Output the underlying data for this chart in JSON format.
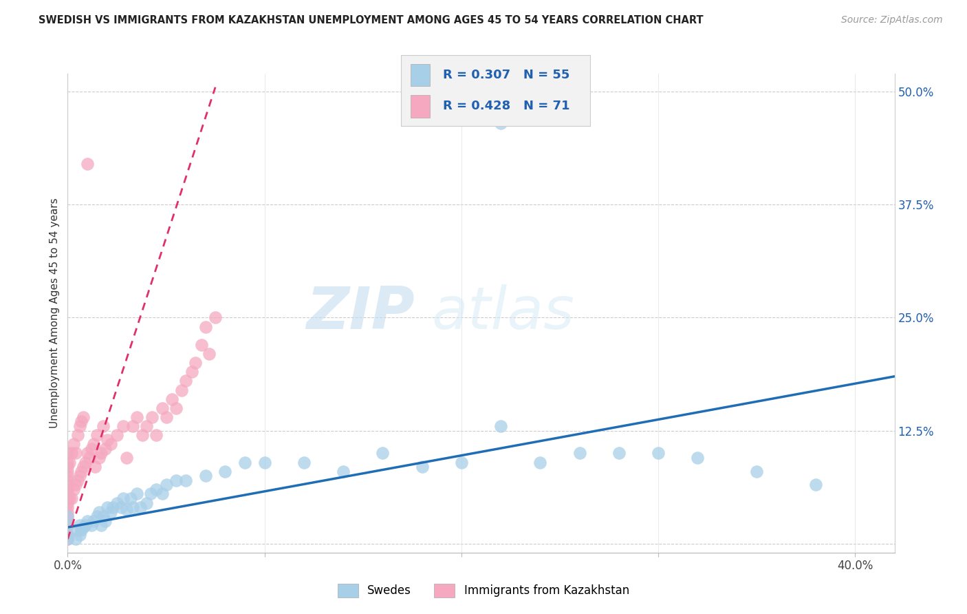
{
  "title": "SWEDISH VS IMMIGRANTS FROM KAZAKHSTAN UNEMPLOYMENT AMONG AGES 45 TO 54 YEARS CORRELATION CHART",
  "source": "Source: ZipAtlas.com",
  "ylabel": "Unemployment Among Ages 45 to 54 years",
  "xlim": [
    0.0,
    0.42
  ],
  "ylim": [
    -0.01,
    0.52
  ],
  "ytick_values": [
    0.0,
    0.125,
    0.25,
    0.375,
    0.5
  ],
  "ytick_labels": [
    "",
    "12.5%",
    "25.0%",
    "37.5%",
    "50.0%"
  ],
  "xtick_values": [
    0.0,
    0.1,
    0.2,
    0.3,
    0.4
  ],
  "xtick_labels": [
    "0.0%",
    "",
    "",
    "",
    "40.0%"
  ],
  "legend_label_swedes": "Swedes",
  "legend_label_kaz": "Immigrants from Kazakhstan",
  "R_swedes": 0.307,
  "N_swedes": 55,
  "R_kaz": 0.428,
  "N_kaz": 71,
  "color_swedes": "#a8cfe8",
  "color_kaz": "#f5a8c0",
  "color_trendline_swedes": "#1f6db5",
  "color_trendline_kaz": "#e0306a",
  "watermark_zip": "ZIP",
  "watermark_atlas": "atlas",
  "sw_trend_x": [
    0.0,
    0.42
  ],
  "sw_trend_y": [
    0.018,
    0.185
  ],
  "kz_trend_x": [
    0.0,
    0.075
  ],
  "kz_trend_y": [
    0.005,
    0.505
  ],
  "sw_x": [
    0.0,
    0.0,
    0.0,
    0.0,
    0.004,
    0.005,
    0.006,
    0.006,
    0.007,
    0.008,
    0.009,
    0.01,
    0.012,
    0.013,
    0.015,
    0.016,
    0.017,
    0.018,
    0.019,
    0.02,
    0.022,
    0.023,
    0.025,
    0.027,
    0.028,
    0.03,
    0.032,
    0.033,
    0.035,
    0.037,
    0.04,
    0.042,
    0.045,
    0.048,
    0.05,
    0.055,
    0.06,
    0.07,
    0.08,
    0.09,
    0.1,
    0.12,
    0.14,
    0.16,
    0.18,
    0.2,
    0.22,
    0.24,
    0.26,
    0.28,
    0.3,
    0.32,
    0.35,
    0.38,
    0.22
  ],
  "sw_y": [
    0.005,
    0.01,
    0.02,
    0.03,
    0.005,
    0.015,
    0.01,
    0.02,
    0.015,
    0.018,
    0.02,
    0.025,
    0.02,
    0.025,
    0.03,
    0.035,
    0.02,
    0.03,
    0.025,
    0.04,
    0.035,
    0.04,
    0.045,
    0.04,
    0.05,
    0.038,
    0.05,
    0.04,
    0.055,
    0.04,
    0.045,
    0.055,
    0.06,
    0.055,
    0.065,
    0.07,
    0.07,
    0.075,
    0.08,
    0.09,
    0.09,
    0.09,
    0.08,
    0.1,
    0.085,
    0.09,
    0.13,
    0.09,
    0.1,
    0.1,
    0.1,
    0.095,
    0.08,
    0.065,
    0.465
  ],
  "kz_x": [
    0.0,
    0.0,
    0.0,
    0.0,
    0.0,
    0.0,
    0.0,
    0.0,
    0.0,
    0.0,
    0.0,
    0.0,
    0.0,
    0.0,
    0.0,
    0.0,
    0.0,
    0.0,
    0.0,
    0.0,
    0.001,
    0.001,
    0.002,
    0.002,
    0.003,
    0.003,
    0.004,
    0.004,
    0.005,
    0.005,
    0.006,
    0.006,
    0.007,
    0.007,
    0.008,
    0.008,
    0.009,
    0.01,
    0.011,
    0.012,
    0.013,
    0.014,
    0.015,
    0.016,
    0.017,
    0.018,
    0.019,
    0.02,
    0.022,
    0.025,
    0.028,
    0.03,
    0.033,
    0.035,
    0.038,
    0.04,
    0.043,
    0.045,
    0.048,
    0.05,
    0.053,
    0.055,
    0.058,
    0.06,
    0.063,
    0.065,
    0.068,
    0.07,
    0.072,
    0.075,
    0.01
  ],
  "kz_y": [
    0.005,
    0.01,
    0.01,
    0.02,
    0.02,
    0.025,
    0.03,
    0.035,
    0.04,
    0.045,
    0.05,
    0.055,
    0.06,
    0.065,
    0.07,
    0.075,
    0.08,
    0.085,
    0.09,
    0.1,
    0.05,
    0.09,
    0.05,
    0.1,
    0.06,
    0.11,
    0.065,
    0.1,
    0.07,
    0.12,
    0.075,
    0.13,
    0.08,
    0.135,
    0.085,
    0.14,
    0.09,
    0.1,
    0.095,
    0.105,
    0.11,
    0.085,
    0.12,
    0.095,
    0.1,
    0.13,
    0.105,
    0.115,
    0.11,
    0.12,
    0.13,
    0.095,
    0.13,
    0.14,
    0.12,
    0.13,
    0.14,
    0.12,
    0.15,
    0.14,
    0.16,
    0.15,
    0.17,
    0.18,
    0.19,
    0.2,
    0.22,
    0.24,
    0.21,
    0.25,
    0.42
  ]
}
